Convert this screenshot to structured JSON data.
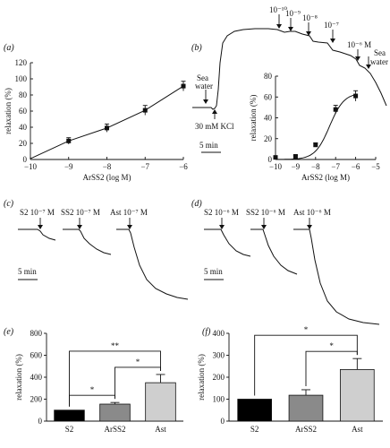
{
  "panels": {
    "a": "(a)",
    "b": "(b)",
    "c": "(c)",
    "d": "(d)",
    "e": "(e)",
    "f": "(f)"
  },
  "colors": {
    "ink": "#111111",
    "bar_s2": "#000000",
    "bar_arss2": "#8a8a8a",
    "bar_ast": "#cfcfcf"
  },
  "trace_b": {
    "arrows": [
      "10⁻¹⁰",
      "10⁻⁹",
      "10⁻⁸",
      "10⁻⁷",
      "10⁻⁶ M"
    ],
    "sea_water_left": [
      "Sea",
      "water"
    ],
    "sea_water_right": [
      "Sea",
      "water"
    ],
    "kcl": "30 mM KCl",
    "scale": "5 min"
  },
  "trace_c": {
    "labels": [
      "S2 10⁻⁷ M",
      "SS2 10⁻⁷ M",
      "Ast 10⁻⁷ M"
    ],
    "scale": "5 min"
  },
  "trace_d": {
    "labels": [
      "S2 10⁻⁶ M",
      "SS2 10⁻⁶ M",
      "Ast 10⁻⁶ M"
    ],
    "scale": "5 min"
  },
  "chart_data": [
    {
      "panel": "a",
      "type": "line",
      "x": [
        -9,
        -8,
        -7,
        -6
      ],
      "y": [
        23,
        39,
        61,
        91
      ],
      "yerr": [
        4,
        5,
        6,
        6
      ],
      "xlim": [
        -10,
        -6
      ],
      "ylim": [
        0,
        120
      ],
      "xticks": [
        "−10",
        "−9",
        "−8",
        "−7",
        "−6"
      ],
      "yticks": [
        "0",
        "20",
        "40",
        "60",
        "80",
        "100",
        "120"
      ],
      "xlabel": "ArSS2 (log M)",
      "ylabel": "relaxation (%)",
      "grid": false
    },
    {
      "panel": "b-inset",
      "type": "line",
      "x": [
        -10,
        -9,
        -8,
        -7,
        -6
      ],
      "y": [
        2,
        3,
        14,
        48,
        61
      ],
      "yerr": [
        0.5,
        1,
        2,
        4,
        5
      ],
      "xlim": [
        -10,
        -5
      ],
      "ylim": [
        0,
        80
      ],
      "xticks": [
        "−10",
        "−9",
        "−8",
        "−7",
        "−6",
        "−5"
      ],
      "yticks": [
        "0",
        "20",
        "40",
        "60",
        "80"
      ],
      "xlabel": "ArSS2 (log M)",
      "ylabel": "relaxation (%)",
      "grid": false
    },
    {
      "panel": "e",
      "type": "bar",
      "categories": [
        "S2",
        "ArSS2",
        "Ast"
      ],
      "values": [
        100,
        155,
        350
      ],
      "yerr": [
        0,
        15,
        75
      ],
      "ylim": [
        0,
        800
      ],
      "yticks": [
        "0",
        "200",
        "400",
        "600",
        "800"
      ],
      "ylabel": "relaxation (%)",
      "significance": [
        {
          "from": 0,
          "to": 1,
          "label": "*"
        },
        {
          "from": 1,
          "to": 2,
          "label": "*"
        },
        {
          "from": 0,
          "to": 2,
          "label": "**"
        }
      ]
    },
    {
      "panel": "f",
      "type": "bar",
      "categories": [
        "S2",
        "ArSS2",
        "Ast"
      ],
      "values": [
        100,
        118,
        235
      ],
      "yerr": [
        0,
        25,
        50
      ],
      "ylim": [
        0,
        400
      ],
      "yticks": [
        "0",
        "100",
        "200",
        "300",
        "400"
      ],
      "ylabel": "relaxation (%)",
      "significance": [
        {
          "from": 1,
          "to": 2,
          "label": "*"
        },
        {
          "from": 0,
          "to": 2,
          "label": "*"
        }
      ]
    }
  ]
}
